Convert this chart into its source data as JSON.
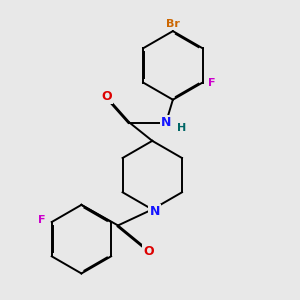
{
  "bg": "#e8e8e8",
  "C": "#000000",
  "N": "#1414ff",
  "O": "#dd0000",
  "F": "#cc00cc",
  "Br": "#cc6600",
  "H": "#006666",
  "lw": 1.4,
  "dbo": 0.022
}
